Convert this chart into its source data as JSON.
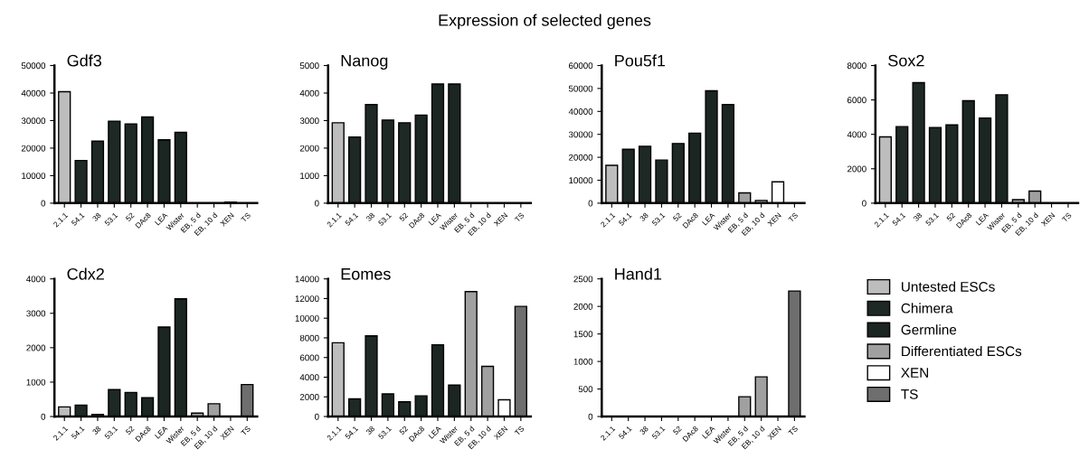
{
  "chart_data": [
    {
      "type": "bar",
      "title": "Gdf3",
      "annotations": [
        "Expression of selected genes"
      ],
      "categories": [
        "2.1.1",
        "54.1",
        "38",
        "53.1",
        "52",
        "DAc8",
        "LEA",
        "Wister",
        "EB, 5 d",
        "EB, 10 d",
        "XEN",
        "TS"
      ],
      "values": [
        40500,
        15500,
        22500,
        29800,
        28800,
        31300,
        23000,
        25700,
        null,
        null,
        400,
        null
      ],
      "colors": [
        "#bdbdbd",
        "#1e2824",
        "#1e2824",
        "#1e2824",
        "#1e2824",
        "#1b2521",
        "#1b2521",
        "#1b2521",
        "#a0a0a0",
        "#a0a0a0",
        "#ffffff",
        "#6e6e6e"
      ],
      "ylim": [
        0,
        50000
      ],
      "yticks": [
        0,
        10000,
        20000,
        30000,
        40000,
        50000
      ],
      "grid": false,
      "legend": false
    },
    {
      "type": "bar",
      "title": "Nanog",
      "categories": [
        "2.1.1",
        "54.1",
        "38",
        "53.1",
        "52",
        "DAc8",
        "LEA",
        "Wister",
        "EB, 5 d",
        "EB, 10 d",
        "XEN",
        "TS"
      ],
      "values": [
        2920,
        2400,
        3580,
        3020,
        2920,
        3200,
        4330,
        4330,
        null,
        null,
        null,
        null
      ],
      "colors": [
        "#bdbdbd",
        "#1e2824",
        "#1e2824",
        "#1e2824",
        "#1e2824",
        "#1b2521",
        "#1b2521",
        "#1b2521",
        "#a0a0a0",
        "#a0a0a0",
        "#ffffff",
        "#6e6e6e"
      ],
      "ylim": [
        0,
        5000
      ],
      "yticks": [
        0,
        1000,
        2000,
        3000,
        4000,
        5000
      ],
      "grid": false,
      "legend": false
    },
    {
      "type": "bar",
      "title": "Pou5f1",
      "categories": [
        "2.1.1",
        "54.1",
        "38",
        "53.1",
        "52",
        "DAc8",
        "LEA",
        "Wister",
        "EB, 5 d",
        "EB, 10 d",
        "XEN",
        "TS"
      ],
      "values": [
        16500,
        23500,
        24800,
        18800,
        26000,
        30500,
        49000,
        43000,
        4500,
        1200,
        9300,
        null
      ],
      "colors": [
        "#bdbdbd",
        "#1e2824",
        "#1e2824",
        "#1e2824",
        "#1e2824",
        "#1b2521",
        "#1b2521",
        "#1b2521",
        "#a0a0a0",
        "#a0a0a0",
        "#ffffff",
        "#6e6e6e"
      ],
      "ylim": [
        0,
        60000
      ],
      "yticks": [
        0,
        10000,
        20000,
        30000,
        40000,
        50000,
        60000
      ],
      "grid": false,
      "legend": false
    },
    {
      "type": "bar",
      "title": "Sox2",
      "categories": [
        "2.1.1",
        "54.1",
        "38",
        "53.1",
        "52",
        "DAc8",
        "LEA",
        "Wister",
        "EB, 5 d",
        "EB, 10 d",
        "XEN",
        "TS"
      ],
      "values": [
        3850,
        4450,
        7000,
        4400,
        4550,
        5950,
        4950,
        6300,
        200,
        700,
        null,
        null
      ],
      "colors": [
        "#bdbdbd",
        "#1e2824",
        "#1e2824",
        "#1e2824",
        "#1e2824",
        "#1b2521",
        "#1b2521",
        "#1b2521",
        "#a0a0a0",
        "#a0a0a0",
        "#ffffff",
        "#6e6e6e"
      ],
      "ylim": [
        0,
        8000
      ],
      "yticks": [
        0,
        2000,
        4000,
        6000,
        8000
      ],
      "grid": false,
      "legend": false
    },
    {
      "type": "bar",
      "title": "Cdx2",
      "categories": [
        "2.1.1",
        "54.1",
        "38",
        "53.1",
        "52",
        "DAc8",
        "LEA",
        "Wister",
        "EB, 5 d",
        "EB, 10 d",
        "XEN",
        "TS"
      ],
      "values": [
        280,
        330,
        60,
        780,
        700,
        550,
        2600,
        3420,
        100,
        370,
        null,
        930
      ],
      "colors": [
        "#bdbdbd",
        "#1e2824",
        "#1e2824",
        "#1e2824",
        "#1e2824",
        "#1b2521",
        "#1b2521",
        "#1b2521",
        "#a0a0a0",
        "#a0a0a0",
        "#ffffff",
        "#6e6e6e"
      ],
      "ylim": [
        0,
        4000
      ],
      "yticks": [
        0,
        1000,
        2000,
        3000,
        4000
      ],
      "grid": false,
      "legend": false
    },
    {
      "type": "bar",
      "title": "Eomes",
      "categories": [
        "2.1.1",
        "54.1",
        "38",
        "53.1",
        "52",
        "DAc8",
        "LEA",
        "Wister",
        "EB, 5 d",
        "EB, 10 d",
        "XEN",
        "TS"
      ],
      "values": [
        7500,
        1800,
        8200,
        2300,
        1500,
        2100,
        7300,
        3200,
        12700,
        5100,
        1700,
        11200
      ],
      "colors": [
        "#bdbdbd",
        "#1e2824",
        "#1e2824",
        "#1e2824",
        "#1e2824",
        "#1b2521",
        "#1b2521",
        "#1b2521",
        "#a0a0a0",
        "#a0a0a0",
        "#ffffff",
        "#6e6e6e"
      ],
      "ylim": [
        0,
        14000
      ],
      "yticks": [
        0,
        2000,
        4000,
        6000,
        8000,
        10000,
        12000,
        14000
      ],
      "grid": false,
      "legend": false
    },
    {
      "type": "bar",
      "title": "Hand1",
      "categories": [
        "2.1.1",
        "54.1",
        "38",
        "53.1",
        "52",
        "DAc8",
        "LEA",
        "Wister",
        "EB, 5 d",
        "EB, 10 d",
        "XEN",
        "TS"
      ],
      "series": [
        {
          "name": "Untested ESCs",
          "color": "#bdbdbd",
          "values": [
            null,
            null,
            null,
            null,
            null,
            null,
            null,
            null,
            null,
            null,
            null,
            null
          ]
        },
        {
          "name": "Chimera",
          "color": "#1e2824",
          "values": [
            null,
            null,
            null,
            null,
            null,
            null,
            null,
            null,
            null,
            null,
            null,
            null
          ]
        },
        {
          "name": "Germline",
          "color": "#1b2521",
          "values": [
            null,
            null,
            null,
            null,
            null,
            null,
            null,
            null,
            null,
            null,
            null,
            null
          ]
        },
        {
          "name": "Differentiated ESCs",
          "color": "#a0a0a0",
          "values": [
            null,
            null,
            null,
            null,
            null,
            null,
            null,
            null,
            360,
            720,
            null,
            null
          ]
        },
        {
          "name": "XEN",
          "color": "#ffffff",
          "values": [
            null,
            null,
            null,
            null,
            null,
            null,
            null,
            null,
            null,
            null,
            null,
            null
          ]
        },
        {
          "name": "TS",
          "color": "#6e6e6e",
          "values": [
            null,
            null,
            null,
            null,
            null,
            null,
            null,
            null,
            null,
            null,
            null,
            2280
          ]
        }
      ],
      "ylim": [
        0,
        2500
      ],
      "yticks": [
        0,
        500,
        1000,
        1500,
        2000,
        2500
      ],
      "grid": false,
      "legend": "right"
    }
  ]
}
